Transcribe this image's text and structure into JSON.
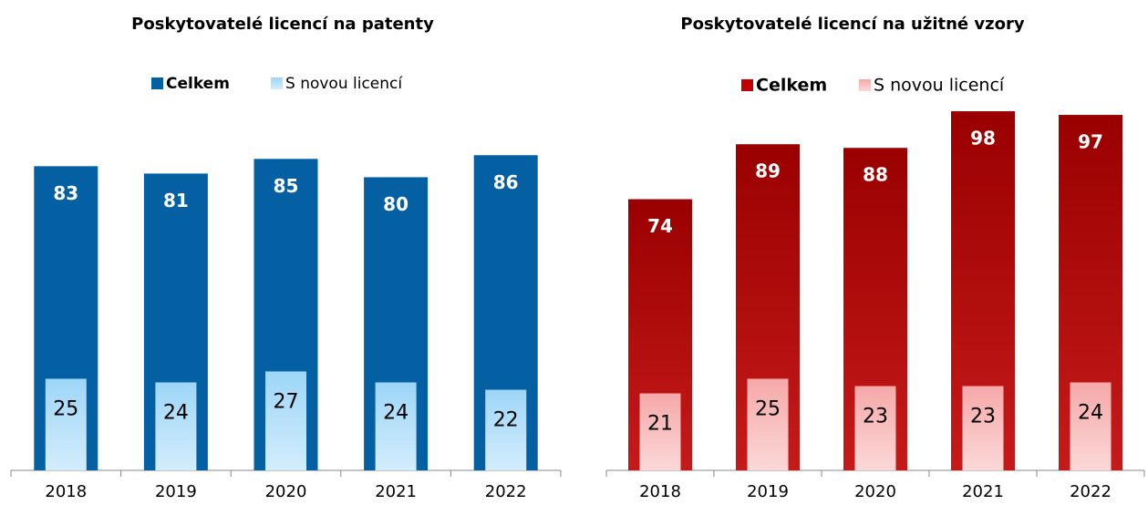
{
  "chart_data": [
    {
      "type": "bar",
      "title": "Poskytovatelé licencí na patenty",
      "categories": [
        "2018",
        "2019",
        "2020",
        "2021",
        "2022"
      ],
      "series": [
        {
          "name": "Celkem",
          "color": "#0460a2",
          "values": [
            83,
            81,
            85,
            80,
            86
          ]
        },
        {
          "name": "S novou licencí",
          "color": "#9dd6f8",
          "values": [
            25,
            24,
            27,
            24,
            22
          ]
        }
      ],
      "ylim": [
        0,
        100
      ],
      "legend": "top"
    },
    {
      "type": "bar",
      "title": "Poskytovatelé licencí na užitné vzory",
      "categories": [
        "2018",
        "2019",
        "2020",
        "2021",
        "2022"
      ],
      "series": [
        {
          "name": "Celkem",
          "color": "#c00000",
          "values": [
            74,
            89,
            88,
            98,
            97
          ]
        },
        {
          "name": "S novou licencí",
          "color": "#f6a8a8",
          "values": [
            21,
            25,
            23,
            23,
            24
          ]
        }
      ],
      "ylim": [
        0,
        100
      ],
      "legend": "top"
    }
  ]
}
